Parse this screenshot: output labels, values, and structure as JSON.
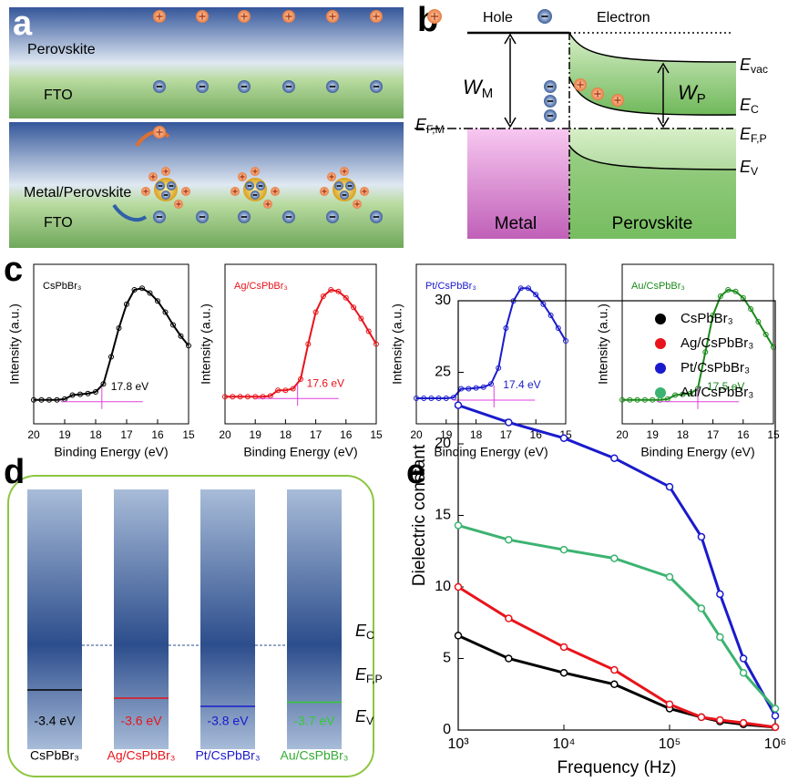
{
  "panels": {
    "a": {
      "letter": "a",
      "top_layer": "Perovskite",
      "top_substrate": "FTO",
      "bottom_layer": "Metal/Perovskite",
      "bottom_substrate": "FTO"
    },
    "b": {
      "letter": "b",
      "legend_hole": "Hole",
      "legend_electron": "Electron",
      "work_metal": {
        "main": "W",
        "sub": "M"
      },
      "fermi_metal": {
        "main": "E",
        "sub": "F,M"
      },
      "vacuum": {
        "main": "E",
        "sub": "vac"
      },
      "work_perovskite": {
        "main": "W",
        "sub": "P"
      },
      "conduction": {
        "main": "E",
        "sub": "C"
      },
      "fermi_perovskite": {
        "main": "E",
        "sub": "F,P"
      },
      "valence": {
        "main": "E",
        "sub": "V"
      },
      "metal": "Metal",
      "perovskite": "Perovskite"
    },
    "c": {
      "letter": "c"
    },
    "d": {
      "letter": "d",
      "conduction": {
        "main": "E",
        "sub": "C"
      },
      "fermi": {
        "main": "E",
        "sub": "F,P"
      },
      "valence": {
        "main": "E",
        "sub": "V"
      },
      "levels": [
        {
          "name": "CsPbBr₃",
          "value": -3.4,
          "label": "-3.4 eV",
          "color": "#000000",
          "name_color": "#000000"
        },
        {
          "name": "Ag/CsPbBr₃",
          "value": -3.6,
          "label": "-3.6 eV",
          "color": "#e8141b",
          "name_color": "#e8141b"
        },
        {
          "name": "Pt/CsPbBr₃",
          "value": -3.8,
          "label": "-3.8 eV",
          "color": "#1a1acc",
          "name_color": "#1a1acc"
        },
        {
          "name": "Au/CsPbBr₃",
          "value": -3.7,
          "label": "-3.7 eV",
          "color": "#33cc33",
          "name_color": "#33aa33"
        }
      ]
    },
    "e": {
      "letter": "e"
    }
  },
  "chart_data": [
    {
      "type": "line",
      "title": "CsPbBr₃",
      "title_color": "#000000",
      "color": "#000000",
      "xlabel": "Binding Energy (eV)",
      "ylabel": "Intensity (a.u.)",
      "xlim": [
        20,
        15
      ],
      "xticks": [
        20,
        19,
        18,
        17,
        16,
        15
      ],
      "ylim": [
        0,
        100
      ],
      "x": [
        20,
        19.75,
        19.5,
        19.25,
        19,
        18.75,
        18.5,
        18.25,
        18,
        17.75,
        17.5,
        17.25,
        17,
        16.75,
        16.5,
        16.25,
        16,
        15.75,
        15.5,
        15.25,
        15
      ],
      "values": [
        15,
        15,
        15,
        15,
        15.5,
        18,
        18.5,
        19,
        20,
        25,
        42,
        60,
        75,
        84,
        85,
        82,
        77,
        70,
        62,
        55,
        49
      ],
      "cutoff": {
        "x": 17.8,
        "label": "17.8 eV"
      }
    },
    {
      "type": "line",
      "title": "Ag/CsPbBr₃",
      "title_color": "#e8141b",
      "color": "#e8141b",
      "xlabel": "Binding Energy (eV)",
      "ylabel": "Intensity (a.u.)",
      "xlim": [
        20,
        15
      ],
      "xticks": [
        20,
        19,
        18,
        17,
        16,
        15
      ],
      "ylim": [
        0,
        100
      ],
      "x": [
        20,
        19.75,
        19.5,
        19.25,
        19,
        18.75,
        18.5,
        18.25,
        18,
        17.75,
        17.5,
        17.25,
        17,
        16.75,
        16.5,
        16.25,
        16,
        15.75,
        15.5,
        15.25,
        15
      ],
      "values": [
        17,
        17,
        17,
        17,
        17,
        17,
        17.5,
        21,
        21,
        22,
        28,
        50,
        70,
        80,
        84,
        83,
        79,
        73,
        66,
        58,
        50
      ],
      "cutoff": {
        "x": 17.6,
        "label": "17.6 eV"
      }
    },
    {
      "type": "line",
      "title": "Pt/CsPbBr₃",
      "title_color": "#1a1acc",
      "color": "#1a1acc",
      "xlabel": "Binding Energy (eV)",
      "ylabel": "Intensity (a.u.)",
      "xlim": [
        20,
        15
      ],
      "xticks": [
        20,
        19,
        18,
        17,
        16,
        15
      ],
      "ylim": [
        0,
        100
      ],
      "x": [
        20,
        19.75,
        19.5,
        19.25,
        19,
        18.75,
        18.5,
        18.25,
        18,
        17.75,
        17.5,
        17.25,
        17,
        16.75,
        16.5,
        16.25,
        16,
        15.75,
        15.5,
        15.25,
        15
      ],
      "values": [
        16,
        16,
        16,
        16,
        16,
        16.5,
        22,
        22,
        22.5,
        23,
        25,
        35,
        60,
        77,
        85,
        85,
        81,
        75,
        68,
        60,
        52
      ],
      "cutoff": {
        "x": 17.4,
        "label": "17.4 eV"
      }
    },
    {
      "type": "line",
      "title": "Au/CsPbBr₃",
      "title_color": "#1a8a1a",
      "color": "#1a8a1a",
      "xlabel": "Binding Energy (eV)",
      "ylabel": "Intensity (a.u.)",
      "xlim": [
        20,
        15
      ],
      "xticks": [
        20,
        19,
        18,
        17,
        16,
        15
      ],
      "ylim": [
        0,
        100
      ],
      "x": [
        20,
        19.75,
        19.5,
        19.25,
        19,
        18.75,
        18.5,
        18.25,
        18,
        17.75,
        17.5,
        17.25,
        17,
        16.75,
        16.5,
        16.25,
        16,
        15.75,
        15.5,
        15.25,
        15
      ],
      "values": [
        15,
        15,
        15,
        15,
        15,
        15,
        15.5,
        18,
        18.5,
        19,
        22,
        45,
        68,
        80,
        84,
        83,
        79,
        72,
        64,
        56,
        48
      ],
      "cutoff": {
        "x": 17.5,
        "label": "17.5 eV"
      }
    },
    {
      "type": "line",
      "xlabel": "Frequency (Hz)",
      "ylabel": "Dielectric constant",
      "xscale": "log",
      "xlim": [
        1000,
        1000000
      ],
      "xticks": [
        {
          "value": 1000,
          "label": "10³"
        },
        {
          "value": 10000,
          "label": "10⁴"
        },
        {
          "value": 100000,
          "label": "10⁵"
        },
        {
          "value": 1000000,
          "label": "10⁶"
        }
      ],
      "ylim": [
        0,
        30
      ],
      "yticks": [
        0,
        5,
        10,
        15,
        20,
        25,
        30
      ],
      "legend": "upper right",
      "x": [
        1000,
        3000,
        10000,
        30000,
        100000,
        200000,
        300000,
        500000,
        1000000
      ],
      "series": [
        {
          "name": "CsPbBr₃",
          "color": "#000000",
          "values": [
            6.6,
            5.0,
            4.0,
            3.2,
            1.5,
            0.9,
            0.6,
            0.4,
            0.2
          ]
        },
        {
          "name": "Ag/CsPbBr₃",
          "color": "#e8141b",
          "values": [
            10,
            7.8,
            5.8,
            4.2,
            1.8,
            0.9,
            0.7,
            0.5,
            0.2
          ]
        },
        {
          "name": "Pt/CsPbBr₃",
          "color": "#1a1acc",
          "values": [
            22.7,
            21.5,
            20.4,
            19.0,
            17.0,
            13.5,
            9.5,
            5.0,
            1.0
          ]
        },
        {
          "name": "Au/CsPbBr₃",
          "color": "#3cb371",
          "values": [
            14.3,
            13.3,
            12.6,
            12.0,
            10.7,
            8.5,
            6.5,
            4.0,
            1.5
          ]
        }
      ]
    }
  ]
}
